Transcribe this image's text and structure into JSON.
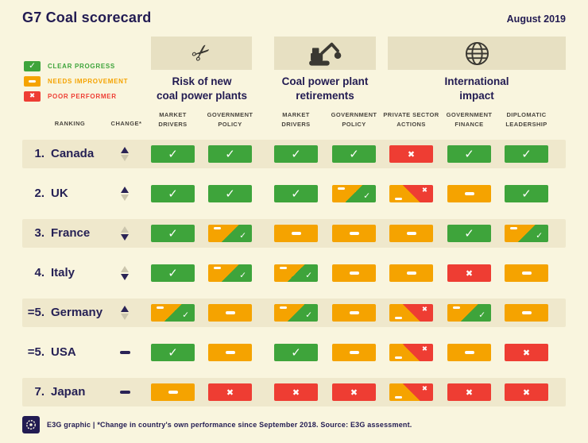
{
  "header": {
    "title": "G7 Coal scorecard",
    "date": "August 2019"
  },
  "legend": [
    {
      "status": "clear",
      "label": "CLEAR PROGRESS"
    },
    {
      "status": "improve",
      "label": "NEEDS IMPROVEMENT"
    },
    {
      "status": "poor",
      "label": "POOR PERFORMER"
    }
  ],
  "categories": [
    {
      "icon": "scissors-icon",
      "title": "Risk of new\ncoal power plants",
      "columns": [
        "MARKET\nDRIVERS",
        "GOVERNMENT\nPOLICY"
      ]
    },
    {
      "icon": "excavator-icon",
      "title": "Coal power plant\nretirements",
      "columns": [
        "MARKET\nDRIVERS",
        "GOVERNMENT\nPOLICY"
      ]
    },
    {
      "icon": "globe-icon",
      "title": "International\nimpact",
      "columns": [
        "PRIVATE SECTOR\nACTIONS",
        "GOVERNMENT\nFINANCE",
        "DIPLOMATIC\nLEADERSHIP"
      ]
    }
  ],
  "table_labels": {
    "ranking": "RANKING",
    "change": "CHANGE*"
  },
  "chart_data": {
    "type": "table",
    "title": "G7 Coal scorecard",
    "status_legend": {
      "clear": "clear progress",
      "improve": "needs improvement",
      "poor": "poor performer"
    },
    "columns": [
      "Risk of new coal power plants - Market drivers",
      "Risk of new coal power plants - Government policy",
      "Coal power plant retirements - Market drivers",
      "Coal power plant retirements - Government policy",
      "International impact - Private sector actions",
      "International impact - Government finance",
      "International impact - Diplomatic leadership"
    ],
    "rows": [
      {
        "rank": "1.",
        "country": "Canada",
        "change": "up",
        "cells": [
          "clear",
          "clear",
          "clear",
          "clear",
          "poor",
          "clear",
          "clear"
        ]
      },
      {
        "rank": "2.",
        "country": "UK",
        "change": "up",
        "cells": [
          "clear",
          "clear",
          "clear",
          [
            "improve",
            "clear"
          ],
          [
            "improve",
            "poor"
          ],
          "improve",
          "clear"
        ]
      },
      {
        "rank": "3.",
        "country": "France",
        "change": "down",
        "cells": [
          "clear",
          [
            "improve",
            "clear"
          ],
          "improve",
          "improve",
          "improve",
          "clear",
          [
            "improve",
            "clear"
          ]
        ]
      },
      {
        "rank": "4.",
        "country": "Italy",
        "change": "down",
        "cells": [
          "clear",
          [
            "improve",
            "clear"
          ],
          [
            "improve",
            "clear"
          ],
          "improve",
          "improve",
          "poor",
          "improve"
        ]
      },
      {
        "rank": "=5.",
        "country": "Germany",
        "change": "up",
        "cells": [
          [
            "improve",
            "clear"
          ],
          "improve",
          [
            "improve",
            "clear"
          ],
          "improve",
          [
            "improve",
            "poor"
          ],
          [
            "improve",
            "clear"
          ],
          "improve"
        ]
      },
      {
        "rank": "=5.",
        "country": "USA",
        "change": "none",
        "cells": [
          "clear",
          "improve",
          "clear",
          "improve",
          [
            "improve",
            "poor"
          ],
          "improve",
          "poor"
        ]
      },
      {
        "rank": "7.",
        "country": "Japan",
        "change": "none",
        "cells": [
          "improve",
          "poor",
          "poor",
          "poor",
          [
            "improve",
            "poor"
          ],
          "poor",
          "poor"
        ]
      }
    ]
  },
  "footer": {
    "text": "E3G graphic  |  *Change in country's own performance since September 2018. Source: E3G assessment."
  },
  "colors": {
    "clear": "#3EA43B",
    "improve": "#F5A300",
    "poor": "#EE3D33",
    "navy": "#221B52",
    "background": "#F9F5DE",
    "row_band": "#EFE8CC",
    "icon_box": "#E7E0C2",
    "inactive_arrow": "#CBC5AD"
  }
}
